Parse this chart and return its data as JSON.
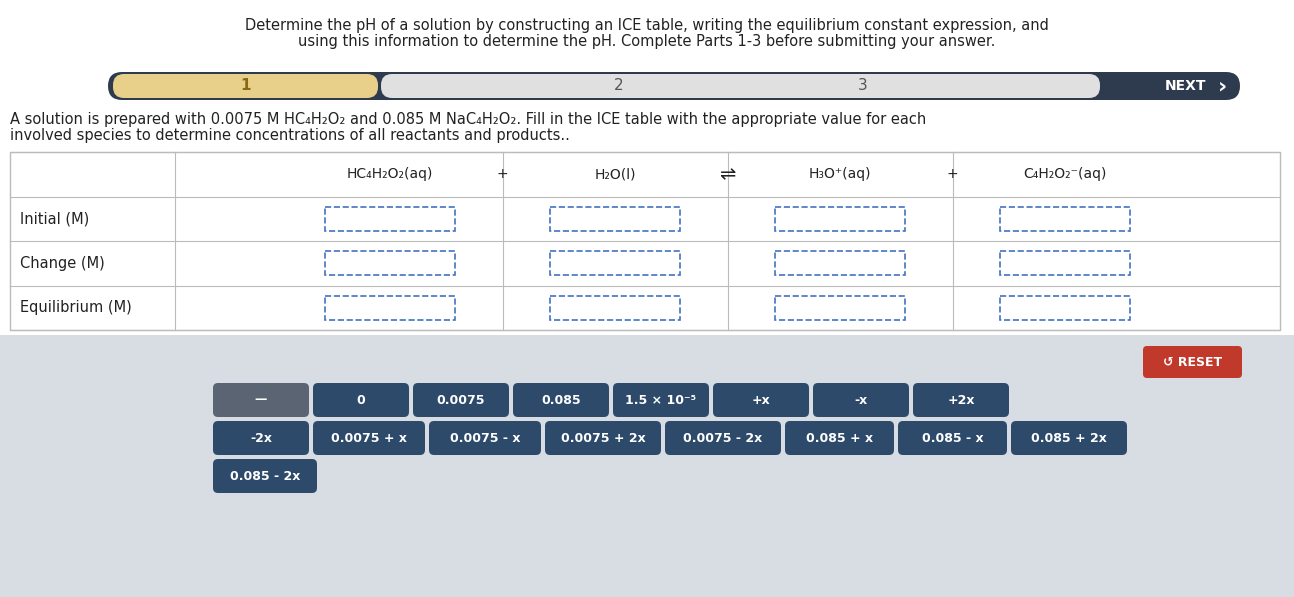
{
  "title_line1": "Determine the pH of a solution by constructing an ICE table, writing the equilibrium constant expression, and",
  "title_line2": "using this information to determine the pH. Complete Parts 1-3 before submitting your answer.",
  "progress_bar": {
    "bg_color": "#2e3a4e",
    "step1_color": "#e8d08a",
    "step1_label": "1",
    "step2_label": "2",
    "step3_label": "3",
    "next_label": "NEXT",
    "steps_bg": "#e0e0e0"
  },
  "description_line1": "A solution is prepared with 0.0075 M HC₄H₂O₂ and 0.085 M NaC₄H₂O₂. Fill in the ICE table with the appropriate value for each",
  "description_line2": "involved species to determine concentrations of all reactants and products..",
  "eq_reactant1": "HC₄H₂O₂(aq)",
  "eq_plus1": "+",
  "eq_reactant2": "H₂O(l)",
  "eq_arrow": "⇌",
  "eq_product1": "H₃O⁺(aq)",
  "eq_plus2": "+",
  "eq_product2": "C₄H₂O₂⁻(aq)",
  "ice_rows": [
    "Initial (M)",
    "Change (M)",
    "Equilibrium (M)"
  ],
  "button_bg_dark": "#2d4a6b",
  "button_bg_gray": "#5a6472",
  "button_bg_reset": "#c0392b",
  "bottom_bg": "#d8dde4",
  "buttons_row1": [
    "—",
    "0",
    "0.0075",
    "0.085",
    "1.5 × 10⁻⁵",
    "+x",
    "-x",
    "+2x"
  ],
  "buttons_row1_gray": [
    true,
    false,
    false,
    false,
    false,
    false,
    false,
    false
  ],
  "buttons_row2": [
    "-2x",
    "0.0075 + x",
    "0.0075 - x",
    "0.0075 + 2x",
    "0.0075 - 2x",
    "0.085 + x",
    "0.085 - x",
    "0.085 + 2x"
  ],
  "buttons_row3": [
    "0.085 - 2x"
  ],
  "reset_label": "↺ RESET"
}
